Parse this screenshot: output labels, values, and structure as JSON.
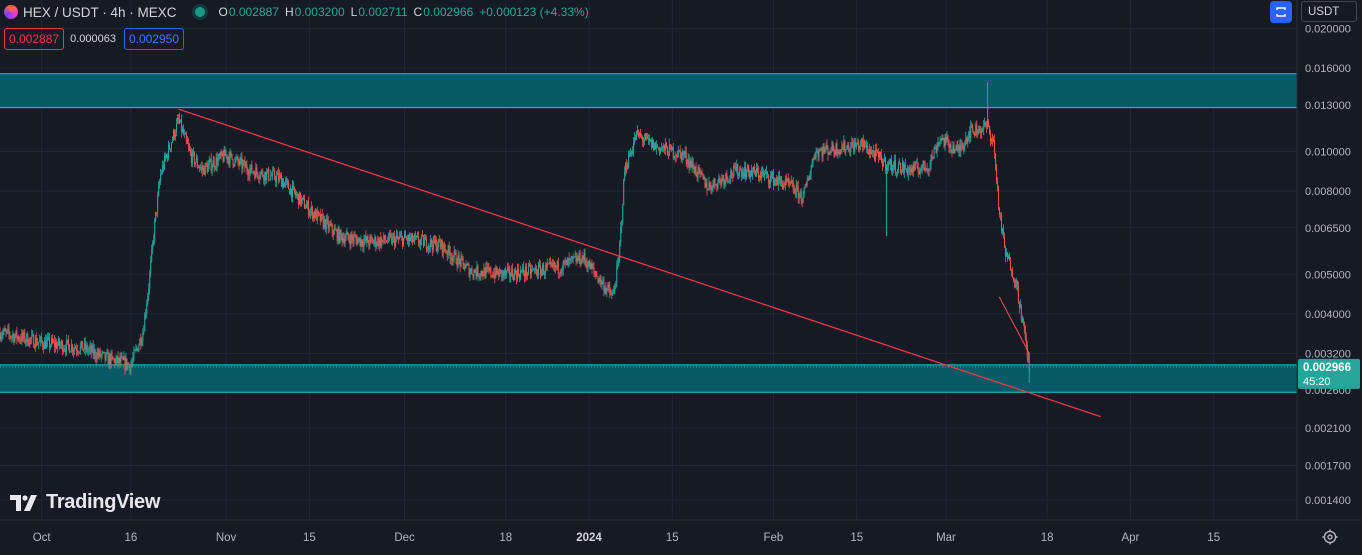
{
  "header": {
    "title": "HEX / USDT · 4h · MEXC",
    "ohlc": [
      {
        "key": "O",
        "value": "0.002887"
      },
      {
        "key": "H",
        "value": "0.003200"
      },
      {
        "key": "L",
        "value": "0.002711"
      },
      {
        "key": "C",
        "value": "0.002966"
      }
    ],
    "change": "+0.000123 (+4.33%)"
  },
  "orders": {
    "sell": "0.002887",
    "spread": "0.000063",
    "buy": "0.002950"
  },
  "toolbar": {
    "currency": "USDT",
    "currency_icon": "chevron-down-icon"
  },
  "watermark": "TradingView",
  "price_scale": {
    "ticks": [
      "0.020000",
      "0.016000",
      "0.013000",
      "0.010000",
      "0.008000",
      "0.006500",
      "0.005000",
      "0.004000",
      "0.003200",
      "0.002600",
      "0.002100",
      "0.001700",
      "0.001400"
    ],
    "last_price": "0.002966",
    "countdown": "45:20"
  },
  "time_scale": {
    "ticks": [
      {
        "label": "Oct",
        "bold": false
      },
      {
        "label": "16",
        "bold": false
      },
      {
        "label": "Nov",
        "bold": false
      },
      {
        "label": "15",
        "bold": false
      },
      {
        "label": "Dec",
        "bold": false
      },
      {
        "label": "18",
        "bold": false
      },
      {
        "label": "2024",
        "bold": true
      },
      {
        "label": "15",
        "bold": false
      },
      {
        "label": "Feb",
        "bold": false
      },
      {
        "label": "15",
        "bold": false
      },
      {
        "label": "Mar",
        "bold": false
      },
      {
        "label": "18",
        "bold": false
      },
      {
        "label": "Apr",
        "bold": false
      },
      {
        "label": "15",
        "bold": false
      }
    ]
  },
  "colors": {
    "background": "#161a25",
    "up": "#26a69a",
    "down": "#ef5350",
    "zone_fill": "#085b66",
    "zone_border": "#22c6d6",
    "trendline": "#f23645",
    "grid": "#232735"
  },
  "chart_data": {
    "type": "candlestick",
    "symbol": "HEX/USDT",
    "exchange": "MEXC",
    "timeframe": "4h",
    "y_scale": "log",
    "ylim": [
      0.00125,
      0.0235
    ],
    "zones": [
      {
        "top": 0.0155,
        "bottom": 0.0128
      },
      {
        "top": 0.003,
        "bottom": 0.00257
      }
    ],
    "trendline": [
      {
        "date": "2023-10-24",
        "price": 0.0127
      },
      {
        "date": "2024-03-27",
        "price": 0.00224
      }
    ],
    "trend_path": [
      [
        "2023-09-24",
        0.0036
      ],
      [
        "2023-10-01",
        0.0034
      ],
      [
        "2023-10-08",
        0.0033
      ],
      [
        "2023-10-12",
        0.0031
      ],
      [
        "2023-10-16",
        0.003
      ],
      [
        "2023-10-18",
        0.0036
      ],
      [
        "2023-10-19",
        0.0047
      ],
      [
        "2023-10-20",
        0.0066
      ],
      [
        "2023-10-21",
        0.0088
      ],
      [
        "2023-10-23",
        0.0108
      ],
      [
        "2023-10-24",
        0.0119
      ],
      [
        "2023-10-26",
        0.0098
      ],
      [
        "2023-10-28",
        0.009
      ],
      [
        "2023-11-01",
        0.0098
      ],
      [
        "2023-11-05",
        0.009
      ],
      [
        "2023-11-10",
        0.0086
      ],
      [
        "2023-11-15",
        0.0072
      ],
      [
        "2023-11-20",
        0.0062
      ],
      [
        "2023-11-25",
        0.006
      ],
      [
        "2023-12-01",
        0.0061
      ],
      [
        "2023-12-07",
        0.0059
      ],
      [
        "2023-12-12",
        0.0051
      ],
      [
        "2023-12-18",
        0.005
      ],
      [
        "2023-12-23",
        0.0051
      ],
      [
        "2023-12-27",
        0.0052
      ],
      [
        "2023-12-31",
        0.0055
      ],
      [
        "2024-01-03",
        0.0048
      ],
      [
        "2024-01-05",
        0.0044
      ],
      [
        "2024-01-06",
        0.0054
      ],
      [
        "2024-01-07",
        0.009
      ],
      [
        "2024-01-09",
        0.011
      ],
      [
        "2024-01-12",
        0.0103
      ],
      [
        "2024-01-17",
        0.0098
      ],
      [
        "2024-01-21",
        0.0082
      ],
      [
        "2024-01-26",
        0.009
      ],
      [
        "2024-01-30",
        0.0088
      ],
      [
        "2024-02-04",
        0.0082
      ],
      [
        "2024-02-06",
        0.0077
      ],
      [
        "2024-02-08",
        0.01
      ],
      [
        "2024-02-12",
        0.0102
      ],
      [
        "2024-02-16",
        0.0104
      ],
      [
        "2024-02-20",
        0.0093
      ],
      [
        "2024-02-24",
        0.009
      ],
      [
        "2024-02-27",
        0.0092
      ],
      [
        "2024-02-29",
        0.0108
      ],
      [
        "2024-03-03",
        0.01
      ],
      [
        "2024-03-05",
        0.0112
      ],
      [
        "2024-03-08",
        0.0115
      ],
      [
        "2024-03-09",
        0.0105
      ],
      [
        "2024-03-10",
        0.007
      ],
      [
        "2024-03-11",
        0.0056
      ],
      [
        "2024-03-12",
        0.0052
      ],
      [
        "2024-03-13",
        0.0046
      ],
      [
        "2024-03-14",
        0.0037
      ],
      [
        "2024-03-15",
        0.003
      ]
    ],
    "spikes": [
      {
        "date": "2024-03-08",
        "high": 0.0148
      },
      {
        "date": "2024-02-20",
        "low": 0.0062
      }
    ],
    "last": {
      "open": 0.002887,
      "high": 0.0032,
      "low": 0.002711,
      "close": 0.002966
    }
  }
}
